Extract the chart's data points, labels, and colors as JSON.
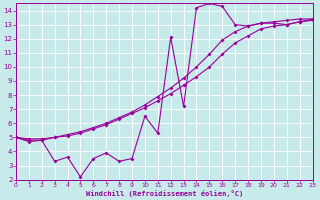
{
  "xlabel": "Windchill (Refroidissement éolien,°C)",
  "bg_color": "#c8eaea",
  "grid_color": "#ffffff",
  "line_color": "#990099",
  "xmin": 0,
  "xmax": 23,
  "ymin": 2,
  "ymax": 14.5,
  "series1_x": [
    0,
    1,
    2,
    3,
    4,
    5,
    6,
    7,
    8,
    9,
    10,
    11,
    12,
    13,
    14,
    15,
    16,
    17,
    18,
    19,
    20,
    21,
    22,
    23
  ],
  "series1_y": [
    5.0,
    4.8,
    4.8,
    5.0,
    5.1,
    5.3,
    5.6,
    5.9,
    6.3,
    6.7,
    7.1,
    7.6,
    8.1,
    8.7,
    9.3,
    10.0,
    10.9,
    11.7,
    12.2,
    12.7,
    12.9,
    13.0,
    13.2,
    13.3
  ],
  "series2_x": [
    0,
    1,
    2,
    3,
    4,
    5,
    6,
    7,
    8,
    9,
    10,
    11,
    12,
    13,
    14,
    15,
    16,
    17,
    18,
    19,
    20,
    21,
    22,
    23
  ],
  "series2_y": [
    5.0,
    4.9,
    4.9,
    5.0,
    5.2,
    5.4,
    5.7,
    6.0,
    6.4,
    6.8,
    7.3,
    7.9,
    8.5,
    9.2,
    10.0,
    10.9,
    11.9,
    12.5,
    12.9,
    13.1,
    13.2,
    13.3,
    13.4,
    13.4
  ],
  "series3_x": [
    0,
    1,
    2,
    3,
    4,
    5,
    6,
    7,
    8,
    9,
    10,
    11,
    12,
    13,
    14,
    15,
    16,
    17,
    18,
    19,
    20,
    21,
    22,
    23
  ],
  "series3_y": [
    5.0,
    4.7,
    4.8,
    3.3,
    3.6,
    2.2,
    3.5,
    3.9,
    3.3,
    3.5,
    6.5,
    5.3,
    12.1,
    7.2,
    14.2,
    14.5,
    14.3,
    13.0,
    12.9,
    13.1,
    13.1,
    13.0,
    13.2,
    13.4
  ],
  "xticks": [
    0,
    1,
    2,
    3,
    4,
    5,
    6,
    7,
    8,
    9,
    10,
    11,
    12,
    13,
    14,
    15,
    16,
    17,
    18,
    19,
    20,
    21,
    22,
    23
  ],
  "yticks": [
    2,
    3,
    4,
    5,
    6,
    7,
    8,
    9,
    10,
    11,
    12,
    13,
    14
  ]
}
